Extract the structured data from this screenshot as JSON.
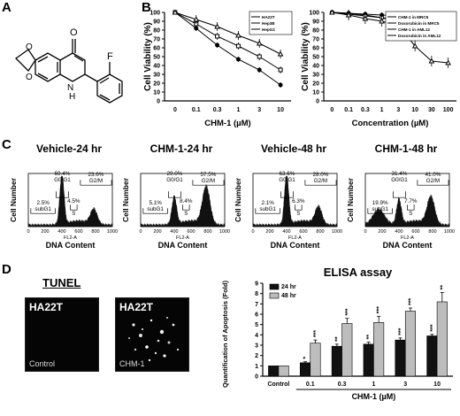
{
  "panels": {
    "A": "A",
    "B": "B",
    "C": "C",
    "D": "D"
  },
  "molecule": {
    "carbonyl": "O",
    "nh": "N",
    "h": "H",
    "fluorine": "F",
    "ring_o1": "O",
    "ring_o2": "O"
  },
  "chart_data": [
    {
      "type": "line",
      "categories": [
        "0",
        "0.1",
        "0.3",
        "1",
        "3",
        "10"
      ],
      "xlabel": "CHM-1 (µM)",
      "ylabel": "Cell Viability (%)",
      "ylim": [
        0,
        100
      ],
      "yticks": [
        "0",
        "10",
        "20",
        "30",
        "40",
        "50",
        "60",
        "70",
        "80",
        "90",
        "100"
      ],
      "legend_position": "top-right",
      "series": [
        {
          "name": "HA22T",
          "values": [
            100,
            82,
            63,
            47,
            35,
            18
          ]
        },
        {
          "name": "Hep3B",
          "values": [
            100,
            87,
            73,
            62,
            50,
            35
          ]
        },
        {
          "name": "HepG2",
          "values": [
            100,
            92,
            84,
            74,
            65,
            53
          ]
        }
      ]
    },
    {
      "type": "line",
      "categories": [
        "0",
        "0.1",
        "0.3",
        "1",
        "3",
        "10",
        "30",
        "100"
      ],
      "xlabel": "Concentration (µM)",
      "ylabel": "Cell Viability (%)",
      "ylim": [
        0,
        100
      ],
      "yticks": [
        "0",
        "10",
        "20",
        "30",
        "40",
        "50",
        "60",
        "70",
        "80",
        "90",
        "100"
      ],
      "legend_position": "top-right",
      "series": [
        {
          "name": "CHM-1 in MRC5",
          "values": [
            100,
            99,
            98,
            97,
            96,
            95,
            94,
            93
          ]
        },
        {
          "name": "Doxorubicin in MRC5",
          "values": [
            100,
            99,
            97,
            94,
            89,
            83,
            79,
            75
          ]
        },
        {
          "name": "CHM-1 in AML12",
          "values": [
            100,
            98,
            96,
            94,
            92,
            88,
            85,
            80
          ]
        },
        {
          "name": "Doxorubicin in AML12",
          "values": [
            100,
            97,
            93,
            90,
            85,
            62,
            45,
            43
          ]
        }
      ]
    },
    {
      "type": "histogram",
      "title": "Vehicle-24 hr",
      "xlabel": "DNA Content",
      "ylabel": "Cell Number",
      "channel": "FL2-A",
      "xticks": [
        "0",
        "200",
        "400",
        "600",
        "800",
        "1000"
      ],
      "gates": {
        "subG1": "2.5%",
        "g0g1": "69.4%",
        "s": "4.5%",
        "g2m": "23.6%"
      },
      "gate_labels": {
        "subG1": "subG1",
        "g0g1": "G0/G1",
        "s": "S",
        "g2m": "G2/M"
      },
      "peaks": [
        {
          "pos": 400,
          "height": 1.0,
          "width": 25
        },
        {
          "pos": 780,
          "height": 0.3,
          "width": 40
        }
      ]
    },
    {
      "type": "histogram",
      "title": "CHM-1-24 hr",
      "xlabel": "DNA Content",
      "ylabel": "Cell Number",
      "channel": "FL2-A",
      "xticks": [
        "0",
        "200",
        "400",
        "600",
        "800",
        "1000"
      ],
      "gates": {
        "subG1": "5.1%",
        "g0g1": "29.0%",
        "s": "8.4%",
        "g2m": "57.5%"
      },
      "gate_labels": {
        "subG1": "subG1",
        "g0g1": "G0/G1",
        "s": "S",
        "g2m": "G2/M"
      },
      "peaks": [
        {
          "pos": 400,
          "height": 0.55,
          "width": 28
        },
        {
          "pos": 780,
          "height": 0.75,
          "width": 45
        }
      ]
    },
    {
      "type": "histogram",
      "title": "Vehicle-48 hr",
      "xlabel": "DNA Content",
      "ylabel": "Cell Number",
      "channel": "FL2-A",
      "xticks": [
        "0",
        "200",
        "400",
        "600",
        "800",
        "1000"
      ],
      "gates": {
        "subG1": "2.1%",
        "g0g1": "63.6%",
        "s": "6.3%",
        "g2m": "28.0%"
      },
      "gate_labels": {
        "subG1": "subG1",
        "g0g1": "G0/G1",
        "s": "S",
        "g2m": "G2/M"
      },
      "peaks": [
        {
          "pos": 400,
          "height": 1.0,
          "width": 25
        },
        {
          "pos": 780,
          "height": 0.35,
          "width": 40
        }
      ]
    },
    {
      "type": "histogram",
      "title": "CHM-1-48 hr",
      "xlabel": "DNA Content",
      "ylabel": "Cell Number",
      "channel": "FL2-A",
      "xticks": [
        "0",
        "200",
        "400",
        "600",
        "800",
        "1000"
      ],
      "gates": {
        "subG1": "19.9%",
        "g0g1": "31.4%",
        "s": "7.7%",
        "g2m": "41.0%"
      },
      "gate_labels": {
        "subG1": "subG1",
        "g0g1": "G0/G1",
        "s": "S",
        "g2m": "G2/M"
      },
      "peaks": [
        {
          "pos": 400,
          "height": 0.5,
          "width": 28
        },
        {
          "pos": 780,
          "height": 0.55,
          "width": 45
        },
        {
          "pos": 160,
          "height": 0.3,
          "width": 70
        }
      ]
    },
    {
      "type": "bar",
      "title": "ELISA assay",
      "categories": [
        "Control",
        "0.1",
        "0.3",
        "1",
        "3",
        "10"
      ],
      "xlabel": "CHM-1 (µM)",
      "ylabel": "Quantification of Apoptosis (Fold)",
      "ylim": [
        0,
        9
      ],
      "yticks": [
        "0",
        "1",
        "2",
        "3",
        "4",
        "5",
        "6",
        "7",
        "8",
        "9"
      ],
      "legend_position": "top-left",
      "series": [
        {
          "name": "24 hr",
          "color": "#111111",
          "values": [
            1.0,
            1.3,
            2.9,
            3.1,
            3.5,
            3.9
          ],
          "errors": [
            0,
            0.1,
            0.2,
            0.2,
            0.2,
            0.15
          ],
          "sig": [
            "",
            "*",
            "**",
            "**",
            "***",
            "***"
          ]
        },
        {
          "name": "48 hr",
          "color": "#bdbdbd",
          "values": [
            1.0,
            3.2,
            5.1,
            5.2,
            6.3,
            7.2
          ],
          "errors": [
            0,
            0.3,
            0.5,
            0.6,
            0.3,
            0.9
          ],
          "sig": [
            "",
            "***",
            "***",
            "***",
            "***",
            "**"
          ]
        }
      ]
    }
  ],
  "tunel": {
    "title": "TUNEL",
    "images": [
      {
        "label": "HA22T",
        "sublabel": "Control"
      },
      {
        "label": "HA22T",
        "sublabel": "CHM-1"
      }
    ]
  }
}
